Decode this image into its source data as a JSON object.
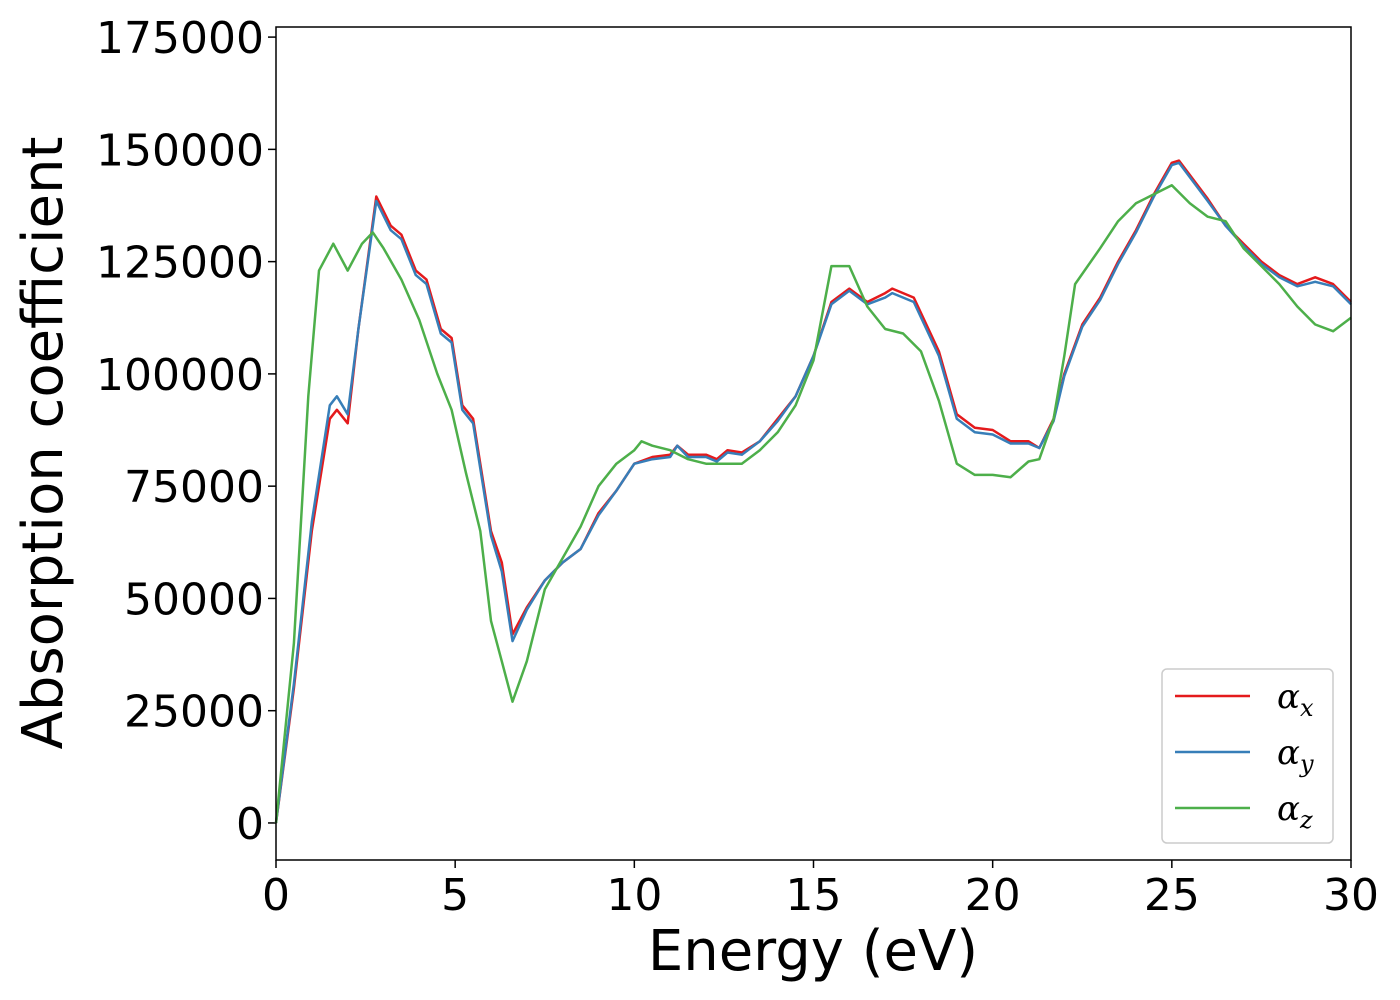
{
  "chart_data": {
    "type": "line",
    "xlabel": "Energy (eV)",
    "ylabel": "Absorption coefficient",
    "xlim": [
      0,
      30
    ],
    "xticks": [
      0,
      5,
      10,
      15,
      20,
      25,
      30
    ],
    "ylim": [
      -8250,
      177250
    ],
    "yticks": [
      0,
      25000,
      50000,
      75000,
      100000,
      125000,
      150000,
      175000
    ],
    "legend": "lower right",
    "series": [
      {
        "name": "αx",
        "color": "#e41a1c",
        "x": [
          0,
          0.5,
          1.0,
          1.5,
          1.7,
          2.0,
          2.3,
          2.8,
          3.2,
          3.5,
          3.9,
          4.2,
          4.6,
          4.9,
          5.2,
          5.5,
          6.0,
          6.3,
          6.6,
          7.0,
          7.5,
          8.0,
          8.5,
          9.0,
          9.5,
          10.0,
          10.5,
          11.0,
          11.2,
          11.5,
          12.0,
          12.3,
          12.6,
          13.0,
          13.5,
          14.0,
          14.5,
          15.0,
          15.5,
          16.0,
          16.5,
          17.0,
          17.2,
          17.8,
          18.5,
          19.0,
          19.5,
          20.0,
          20.5,
          21.0,
          21.3,
          21.7,
          22.0,
          22.5,
          23.0,
          23.5,
          24.0,
          24.5,
          25.0,
          25.2,
          26.0,
          26.5,
          27.0,
          27.5,
          28.0,
          28.5,
          29.0,
          29.5,
          30.0
        ],
        "values": [
          0,
          30000,
          65000,
          90000,
          92000,
          89000,
          110000,
          139500,
          133000,
          131000,
          123000,
          121000,
          110000,
          108000,
          93000,
          90000,
          65000,
          58000,
          42000,
          48000,
          54000,
          58000,
          61000,
          69000,
          74000,
          80000,
          81500,
          82000,
          84000,
          82000,
          82000,
          81000,
          83000,
          82500,
          85000,
          90000,
          95000,
          104000,
          116000,
          119000,
          116000,
          118000,
          119000,
          117000,
          105000,
          91000,
          88000,
          87500,
          85000,
          85000,
          83500,
          90000,
          100000,
          111000,
          117000,
          125000,
          132000,
          140000,
          147000,
          147500,
          139000,
          133000,
          129000,
          125000,
          122000,
          120000,
          121500,
          120000,
          116000
        ]
      },
      {
        "name": "αy",
        "color": "#377eb8",
        "x": [
          0,
          0.5,
          1.0,
          1.5,
          1.7,
          2.0,
          2.3,
          2.8,
          3.2,
          3.5,
          3.9,
          4.2,
          4.6,
          4.9,
          5.2,
          5.5,
          6.0,
          6.3,
          6.6,
          7.0,
          7.5,
          8.0,
          8.5,
          9.0,
          9.5,
          10.0,
          10.5,
          11.0,
          11.2,
          11.5,
          12.0,
          12.3,
          12.6,
          13.0,
          13.5,
          14.0,
          14.5,
          15.0,
          15.5,
          16.0,
          16.5,
          17.0,
          17.2,
          17.8,
          18.5,
          19.0,
          19.5,
          20.0,
          20.5,
          21.0,
          21.3,
          21.7,
          22.0,
          22.5,
          23.0,
          23.5,
          24.0,
          24.5,
          25.0,
          25.2,
          26.0,
          26.5,
          27.0,
          27.5,
          28.0,
          28.5,
          29.0,
          29.5,
          30.0
        ],
        "values": [
          0,
          31000,
          67000,
          93000,
          95000,
          91000,
          110000,
          138500,
          132000,
          130000,
          122000,
          120000,
          109000,
          107000,
          92000,
          89000,
          64000,
          56000,
          40500,
          47500,
          54000,
          58000,
          61000,
          68500,
          74000,
          80000,
          81000,
          81500,
          84000,
          81500,
          81500,
          80500,
          82500,
          82000,
          85000,
          89500,
          95000,
          104000,
          115500,
          118500,
          115500,
          117000,
          118000,
          116000,
          104000,
          90000,
          87000,
          86500,
          84500,
          84500,
          83500,
          89500,
          99500,
          110500,
          116500,
          124500,
          131500,
          139500,
          146500,
          147000,
          138500,
          133000,
          128500,
          124500,
          121500,
          119500,
          120500,
          119500,
          115500
        ]
      },
      {
        "name": "αz",
        "color": "#4daf4a",
        "x": [
          0,
          0.5,
          0.9,
          1.2,
          1.6,
          2.0,
          2.4,
          2.7,
          3.0,
          3.5,
          4.0,
          4.5,
          4.9,
          5.3,
          5.7,
          6.0,
          6.3,
          6.6,
          7.0,
          7.5,
          8.0,
          8.5,
          9.0,
          9.5,
          10.0,
          10.2,
          10.5,
          11.0,
          11.5,
          12.0,
          12.5,
          13.0,
          13.5,
          14.0,
          14.5,
          15.0,
          15.5,
          16.0,
          16.5,
          17.0,
          17.5,
          18.0,
          18.5,
          19.0,
          19.5,
          20.0,
          20.5,
          21.0,
          21.3,
          21.7,
          22.0,
          22.3,
          23.0,
          23.5,
          24.0,
          24.5,
          25.0,
          25.5,
          26.0,
          26.5,
          27.0,
          27.5,
          28.0,
          28.5,
          29.0,
          29.5,
          30.0
        ],
        "values": [
          0,
          40000,
          95000,
          123000,
          129000,
          123000,
          129000,
          131500,
          128000,
          121000,
          112000,
          100000,
          92000,
          78000,
          65000,
          45000,
          36000,
          27000,
          36000,
          52000,
          59000,
          66000,
          75000,
          80000,
          83000,
          85000,
          84000,
          83000,
          81000,
          80000,
          80000,
          80000,
          83000,
          87000,
          93000,
          103000,
          124000,
          124000,
          115000,
          110000,
          109000,
          105000,
          94000,
          80000,
          77500,
          77500,
          77000,
          80500,
          81000,
          90000,
          104000,
          120000,
          128000,
          134000,
          138000,
          140000,
          142000,
          138000,
          135000,
          134000,
          128000,
          124000,
          120000,
          115000,
          111000,
          109500,
          112500
        ]
      }
    ]
  }
}
